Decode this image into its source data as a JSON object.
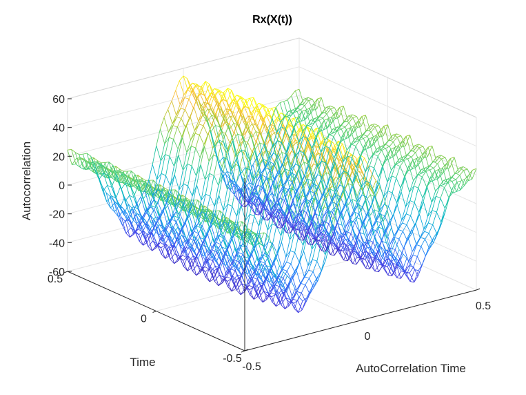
{
  "chart_data": {
    "type": "surface",
    "title": "Rx(X(t))",
    "xlabel": "AutoCorrelation Time",
    "ylabel": "Time",
    "zlabel": "Autocorrelation",
    "xlim": [
      -0.5,
      0.5
    ],
    "ylim": [
      -0.5,
      0.5
    ],
    "zlim": [
      -60,
      60
    ],
    "x_ticks": [
      "-0.5",
      "0",
      "0.5"
    ],
    "y_ticks": [
      "-0.5",
      "0",
      "0.5"
    ],
    "z_ticks": [
      "-60",
      "-40",
      "-20",
      "0",
      "20",
      "40",
      "60"
    ],
    "colormap": "parula",
    "grid": true,
    "mesh": "wireframe",
    "surface_model": {
      "description_free": true,
      "peak_value": 55,
      "trough_value": -55
    }
  }
}
